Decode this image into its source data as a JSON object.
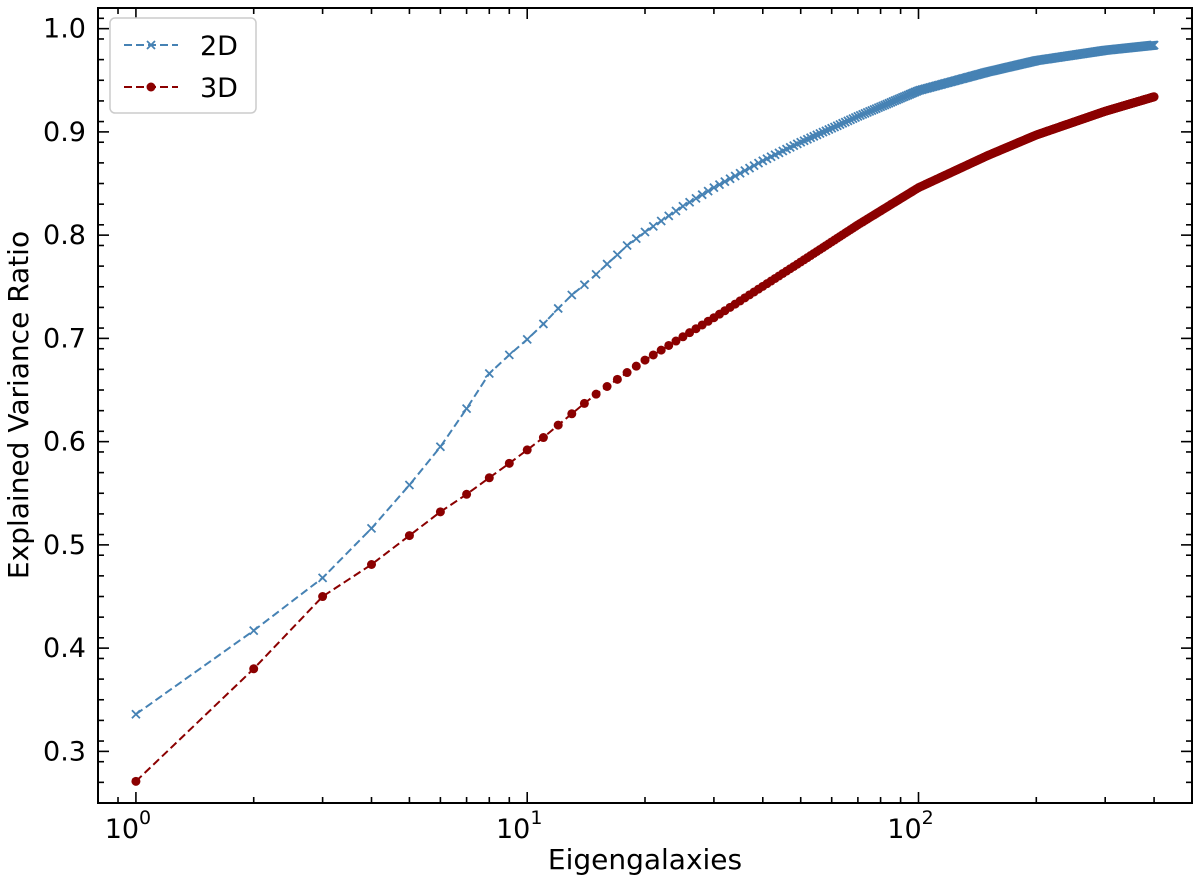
{
  "chart_data": {
    "type": "line",
    "title": "",
    "xlabel": "Eigengalaxies",
    "ylabel": "Explained Variance Ratio",
    "xscale": "log",
    "xlim": [
      0.8,
      500
    ],
    "ylim": [
      0.25,
      1.02
    ],
    "x_ticks": [
      1,
      10,
      100
    ],
    "x_tick_labels": [
      {
        "base": "10",
        "exp": "0"
      },
      {
        "base": "10",
        "exp": "1"
      },
      {
        "base": "10",
        "exp": "2"
      }
    ],
    "y_ticks": [
      0.3,
      0.4,
      0.5,
      0.6,
      0.7,
      0.8,
      0.9,
      1.0
    ],
    "y_tick_labels": [
      "0.3",
      "0.4",
      "0.5",
      "0.6",
      "0.7",
      "0.8",
      "0.9",
      "1.0"
    ],
    "grid": false,
    "legend_position": "top-left",
    "x_range": [
      1,
      400
    ],
    "series": [
      {
        "name": "2D",
        "color": "#4682b4",
        "marker": "x",
        "linestyle": "dashed",
        "anchors": [
          [
            1,
            0.336
          ],
          [
            2,
            0.417
          ],
          [
            3,
            0.468
          ],
          [
            4,
            0.516
          ],
          [
            5,
            0.558
          ],
          [
            6,
            0.595
          ],
          [
            7,
            0.632
          ],
          [
            8,
            0.666
          ],
          [
            9,
            0.684
          ],
          [
            10,
            0.699
          ],
          [
            11,
            0.714
          ],
          [
            12,
            0.729
          ],
          [
            13,
            0.742
          ],
          [
            14,
            0.752
          ],
          [
            15,
            0.762
          ],
          [
            16,
            0.772
          ],
          [
            17,
            0.781
          ],
          [
            18,
            0.79
          ],
          [
            20,
            0.803
          ],
          [
            25,
            0.828
          ],
          [
            30,
            0.846
          ],
          [
            40,
            0.872
          ],
          [
            50,
            0.89
          ],
          [
            70,
            0.915
          ],
          [
            100,
            0.94
          ],
          [
            150,
            0.958
          ],
          [
            200,
            0.969
          ],
          [
            300,
            0.979
          ],
          [
            400,
            0.984
          ]
        ]
      },
      {
        "name": "3D",
        "color": "#8b0000",
        "marker": "o",
        "linestyle": "dashed",
        "anchors": [
          [
            1,
            0.271
          ],
          [
            2,
            0.38
          ],
          [
            3,
            0.45
          ],
          [
            4,
            0.481
          ],
          [
            5,
            0.509
          ],
          [
            6,
            0.532
          ],
          [
            7,
            0.549
          ],
          [
            8,
            0.565
          ],
          [
            9,
            0.579
          ],
          [
            10,
            0.592
          ],
          [
            11,
            0.604
          ],
          [
            12,
            0.616
          ],
          [
            13,
            0.627
          ],
          [
            14,
            0.637
          ],
          [
            15,
            0.646
          ],
          [
            20,
            0.679
          ],
          [
            30,
            0.72
          ],
          [
            50,
            0.774
          ],
          [
            70,
            0.81
          ],
          [
            100,
            0.846
          ],
          [
            150,
            0.877
          ],
          [
            200,
            0.897
          ],
          [
            300,
            0.92
          ],
          [
            400,
            0.934
          ]
        ]
      }
    ]
  }
}
